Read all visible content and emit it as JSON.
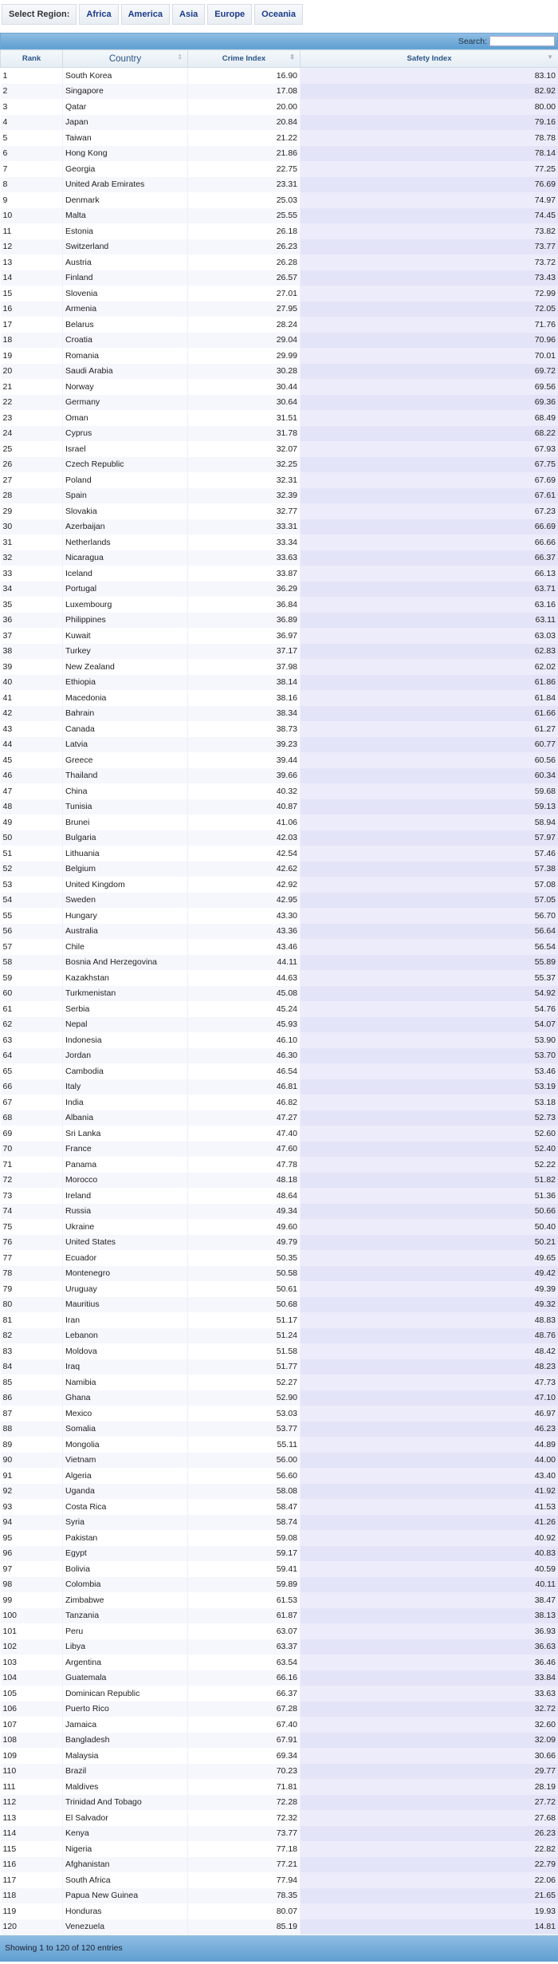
{
  "region_bar": {
    "label": "Select Region:",
    "regions": [
      "Africa",
      "America",
      "Asia",
      "Europe",
      "Oceania"
    ]
  },
  "search": {
    "label": "Search:",
    "value": ""
  },
  "table": {
    "columns": [
      "Rank",
      "Country",
      "Crime Index",
      "Safety Index"
    ],
    "sorted_column": "Safety Index",
    "sort_direction": "descending",
    "rows": [
      [
        "1",
        "South Korea",
        "16.90",
        "83.10"
      ],
      [
        "2",
        "Singapore",
        "17.08",
        "82.92"
      ],
      [
        "3",
        "Qatar",
        "20.00",
        "80.00"
      ],
      [
        "4",
        "Japan",
        "20.84",
        "79.16"
      ],
      [
        "5",
        "Taiwan",
        "21.22",
        "78.78"
      ],
      [
        "6",
        "Hong Kong",
        "21.86",
        "78.14"
      ],
      [
        "7",
        "Georgia",
        "22.75",
        "77.25"
      ],
      [
        "8",
        "United Arab Emirates",
        "23.31",
        "76.69"
      ],
      [
        "9",
        "Denmark",
        "25.03",
        "74.97"
      ],
      [
        "10",
        "Malta",
        "25.55",
        "74.45"
      ],
      [
        "11",
        "Estonia",
        "26.18",
        "73.82"
      ],
      [
        "12",
        "Switzerland",
        "26.23",
        "73.77"
      ],
      [
        "13",
        "Austria",
        "26.28",
        "73.72"
      ],
      [
        "14",
        "Finland",
        "26.57",
        "73.43"
      ],
      [
        "15",
        "Slovenia",
        "27.01",
        "72.99"
      ],
      [
        "16",
        "Armenia",
        "27.95",
        "72.05"
      ],
      [
        "17",
        "Belarus",
        "28.24",
        "71.76"
      ],
      [
        "18",
        "Croatia",
        "29.04",
        "70.96"
      ],
      [
        "19",
        "Romania",
        "29.99",
        "70.01"
      ],
      [
        "20",
        "Saudi Arabia",
        "30.28",
        "69.72"
      ],
      [
        "21",
        "Norway",
        "30.44",
        "69.56"
      ],
      [
        "22",
        "Germany",
        "30.64",
        "69.36"
      ],
      [
        "23",
        "Oman",
        "31.51",
        "68.49"
      ],
      [
        "24",
        "Cyprus",
        "31.78",
        "68.22"
      ],
      [
        "25",
        "Israel",
        "32.07",
        "67.93"
      ],
      [
        "26",
        "Czech Republic",
        "32.25",
        "67.75"
      ],
      [
        "27",
        "Poland",
        "32.31",
        "67.69"
      ],
      [
        "28",
        "Spain",
        "32.39",
        "67.61"
      ],
      [
        "29",
        "Slovakia",
        "32.77",
        "67.23"
      ],
      [
        "30",
        "Azerbaijan",
        "33.31",
        "66.69"
      ],
      [
        "31",
        "Netherlands",
        "33.34",
        "66.66"
      ],
      [
        "32",
        "Nicaragua",
        "33.63",
        "66.37"
      ],
      [
        "33",
        "Iceland",
        "33.87",
        "66.13"
      ],
      [
        "34",
        "Portugal",
        "36.29",
        "63.71"
      ],
      [
        "35",
        "Luxembourg",
        "36.84",
        "63.16"
      ],
      [
        "36",
        "Philippines",
        "36.89",
        "63.11"
      ],
      [
        "37",
        "Kuwait",
        "36.97",
        "63.03"
      ],
      [
        "38",
        "Turkey",
        "37.17",
        "62.83"
      ],
      [
        "39",
        "New Zealand",
        "37.98",
        "62.02"
      ],
      [
        "40",
        "Ethiopia",
        "38.14",
        "61.86"
      ],
      [
        "41",
        "Macedonia",
        "38.16",
        "61.84"
      ],
      [
        "42",
        "Bahrain",
        "38.34",
        "61.66"
      ],
      [
        "43",
        "Canada",
        "38.73",
        "61.27"
      ],
      [
        "44",
        "Latvia",
        "39.23",
        "60.77"
      ],
      [
        "45",
        "Greece",
        "39.44",
        "60.56"
      ],
      [
        "46",
        "Thailand",
        "39.66",
        "60.34"
      ],
      [
        "47",
        "China",
        "40.32",
        "59.68"
      ],
      [
        "48",
        "Tunisia",
        "40.87",
        "59.13"
      ],
      [
        "49",
        "Brunei",
        "41.06",
        "58.94"
      ],
      [
        "50",
        "Bulgaria",
        "42.03",
        "57.97"
      ],
      [
        "51",
        "Lithuania",
        "42.54",
        "57.46"
      ],
      [
        "52",
        "Belgium",
        "42.62",
        "57.38"
      ],
      [
        "53",
        "United Kingdom",
        "42.92",
        "57.08"
      ],
      [
        "54",
        "Sweden",
        "42.95",
        "57.05"
      ],
      [
        "55",
        "Hungary",
        "43.30",
        "56.70"
      ],
      [
        "56",
        "Australia",
        "43.36",
        "56.64"
      ],
      [
        "57",
        "Chile",
        "43.46",
        "56.54"
      ],
      [
        "58",
        "Bosnia And Herzegovina",
        "44.11",
        "55.89"
      ],
      [
        "59",
        "Kazakhstan",
        "44.63",
        "55.37"
      ],
      [
        "60",
        "Turkmenistan",
        "45.08",
        "54.92"
      ],
      [
        "61",
        "Serbia",
        "45.24",
        "54.76"
      ],
      [
        "62",
        "Nepal",
        "45.93",
        "54.07"
      ],
      [
        "63",
        "Indonesia",
        "46.10",
        "53.90"
      ],
      [
        "64",
        "Jordan",
        "46.30",
        "53.70"
      ],
      [
        "65",
        "Cambodia",
        "46.54",
        "53.46"
      ],
      [
        "66",
        "Italy",
        "46.81",
        "53.19"
      ],
      [
        "67",
        "India",
        "46.82",
        "53.18"
      ],
      [
        "68",
        "Albania",
        "47.27",
        "52.73"
      ],
      [
        "69",
        "Sri Lanka",
        "47.40",
        "52.60"
      ],
      [
        "70",
        "France",
        "47.60",
        "52.40"
      ],
      [
        "71",
        "Panama",
        "47.78",
        "52.22"
      ],
      [
        "72",
        "Morocco",
        "48.18",
        "51.82"
      ],
      [
        "73",
        "Ireland",
        "48.64",
        "51.36"
      ],
      [
        "74",
        "Russia",
        "49.34",
        "50.66"
      ],
      [
        "75",
        "Ukraine",
        "49.60",
        "50.40"
      ],
      [
        "76",
        "United States",
        "49.79",
        "50.21"
      ],
      [
        "77",
        "Ecuador",
        "50.35",
        "49.65"
      ],
      [
        "78",
        "Montenegro",
        "50.58",
        "49.42"
      ],
      [
        "79",
        "Uruguay",
        "50.61",
        "49.39"
      ],
      [
        "80",
        "Mauritius",
        "50.68",
        "49.32"
      ],
      [
        "81",
        "Iran",
        "51.17",
        "48.83"
      ],
      [
        "82",
        "Lebanon",
        "51.24",
        "48.76"
      ],
      [
        "83",
        "Moldova",
        "51.58",
        "48.42"
      ],
      [
        "84",
        "Iraq",
        "51.77",
        "48.23"
      ],
      [
        "85",
        "Namibia",
        "52.27",
        "47.73"
      ],
      [
        "86",
        "Ghana",
        "52.90",
        "47.10"
      ],
      [
        "87",
        "Mexico",
        "53.03",
        "46.97"
      ],
      [
        "88",
        "Somalia",
        "53.77",
        "46.23"
      ],
      [
        "89",
        "Mongolia",
        "55.11",
        "44.89"
      ],
      [
        "90",
        "Vietnam",
        "56.00",
        "44.00"
      ],
      [
        "91",
        "Algeria",
        "56.60",
        "43.40"
      ],
      [
        "92",
        "Uganda",
        "58.08",
        "41.92"
      ],
      [
        "93",
        "Costa Rica",
        "58.47",
        "41.53"
      ],
      [
        "94",
        "Syria",
        "58.74",
        "41.26"
      ],
      [
        "95",
        "Pakistan",
        "59.08",
        "40.92"
      ],
      [
        "96",
        "Egypt",
        "59.17",
        "40.83"
      ],
      [
        "97",
        "Bolivia",
        "59.41",
        "40.59"
      ],
      [
        "98",
        "Colombia",
        "59.89",
        "40.11"
      ],
      [
        "99",
        "Zimbabwe",
        "61.53",
        "38.47"
      ],
      [
        "100",
        "Tanzania",
        "61.87",
        "38.13"
      ],
      [
        "101",
        "Peru",
        "63.07",
        "36.93"
      ],
      [
        "102",
        "Libya",
        "63.37",
        "36.63"
      ],
      [
        "103",
        "Argentina",
        "63.54",
        "36.46"
      ],
      [
        "104",
        "Guatemala",
        "66.16",
        "33.84"
      ],
      [
        "105",
        "Dominican Republic",
        "66.37",
        "33.63"
      ],
      [
        "106",
        "Puerto Rico",
        "67.28",
        "32.72"
      ],
      [
        "107",
        "Jamaica",
        "67.40",
        "32.60"
      ],
      [
        "108",
        "Bangladesh",
        "67.91",
        "32.09"
      ],
      [
        "109",
        "Malaysia",
        "69.34",
        "30.66"
      ],
      [
        "110",
        "Brazil",
        "70.23",
        "29.77"
      ],
      [
        "111",
        "Maldives",
        "71.81",
        "28.19"
      ],
      [
        "112",
        "Trinidad And Tobago",
        "72.28",
        "27.72"
      ],
      [
        "113",
        "El Salvador",
        "72.32",
        "27.68"
      ],
      [
        "114",
        "Kenya",
        "73.77",
        "26.23"
      ],
      [
        "115",
        "Nigeria",
        "77.18",
        "22.82"
      ],
      [
        "116",
        "Afghanistan",
        "77.21",
        "22.79"
      ],
      [
        "117",
        "South Africa",
        "77.94",
        "22.06"
      ],
      [
        "118",
        "Papua New Guinea",
        "78.35",
        "21.65"
      ],
      [
        "119",
        "Honduras",
        "80.07",
        "19.93"
      ],
      [
        "120",
        "Venezuela",
        "85.19",
        "14.81"
      ]
    ]
  },
  "footer": {
    "info": "Showing 1 to 120 of 120 entries"
  },
  "colors": {
    "header_bar": "#6fa6d3",
    "link": "#1a3a8a",
    "sorted_column_bg": "#ececfb"
  }
}
